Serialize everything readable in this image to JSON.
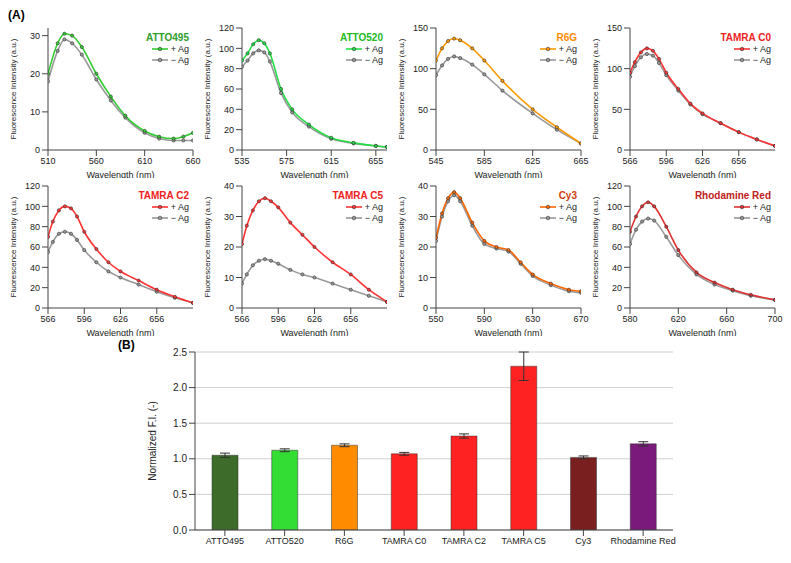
{
  "panel_labels": [
    "(A)",
    "(B)"
  ],
  "chart_data": [
    {
      "type": "line",
      "title": "ATTO495",
      "color": "#2e9e2e",
      "x_label": "Wavelength (nm)",
      "y_label": "Fluorescence Intensity (a.u.)",
      "x": [
        510,
        520,
        527,
        535,
        545,
        560,
        575,
        590,
        610,
        625,
        640,
        650,
        660
      ],
      "series": [
        {
          "name": "+ Ag",
          "color": "#33cc33",
          "marker": "circle",
          "values": [
            20,
            28,
            30.5,
            30,
            27,
            20,
            14,
            9,
            5,
            3.5,
            3,
            3.5,
            4.5
          ]
        },
        {
          "name": "− Ag",
          "color": "#999999",
          "marker": "circle",
          "values": [
            18,
            26,
            29,
            28,
            25,
            18.5,
            13,
            8.5,
            4.5,
            3,
            2.5,
            2.5,
            2.5
          ]
        }
      ],
      "xlim": [
        510,
        660
      ],
      "xticks": [
        510,
        560,
        610,
        660
      ],
      "ylim": [
        0,
        32
      ],
      "yticks": [
        0,
        10,
        20,
        30
      ],
      "legend": "upper right",
      "grid": false
    },
    {
      "type": "line",
      "title": "ATTO520",
      "color": "#22bb22",
      "x_label": "Wavelength (nm)",
      "y_label": "Fluorescence Intensity (a.u.)",
      "x": [
        535,
        540,
        545,
        550,
        555,
        560,
        570,
        580,
        595,
        615,
        635,
        655,
        665
      ],
      "series": [
        {
          "name": "+ Ag",
          "color": "#22dd44",
          "marker": "circle",
          "values": [
            88,
            95,
            104,
            108,
            105,
            95,
            60,
            40,
            25,
            12,
            7,
            4,
            3
          ]
        },
        {
          "name": "− Ag",
          "color": "#999999",
          "marker": "circle",
          "values": [
            82,
            88,
            95,
            98,
            96,
            87,
            56,
            37,
            23,
            11,
            6.5,
            4,
            3
          ]
        }
      ],
      "xlim": [
        535,
        665
      ],
      "xticks": [
        535,
        575,
        615,
        655
      ],
      "ylim": [
        0,
        120
      ],
      "yticks": [
        0,
        20,
        40,
        60,
        80,
        100,
        120
      ],
      "legend": "upper right",
      "grid": false
    },
    {
      "type": "line",
      "title": "R6G",
      "color": "#ff8c00",
      "x_label": "Wavelength (nm)",
      "y_label": "Fluorescence Intensity (a.u.)",
      "x": [
        545,
        550,
        555,
        560,
        565,
        575,
        585,
        600,
        625,
        645,
        665
      ],
      "series": [
        {
          "name": "+ Ag",
          "color": "#ff9900",
          "marker": "circle",
          "values": [
            110,
            125,
            134,
            137,
            135,
            125,
            110,
            85,
            50,
            28,
            8
          ]
        },
        {
          "name": "− Ag",
          "color": "#999999",
          "marker": "circle",
          "values": [
            92,
            104,
            112,
            115,
            113,
            105,
            93,
            73,
            45,
            25,
            8
          ]
        }
      ],
      "xlim": [
        545,
        665
      ],
      "xticks": [
        545,
        585,
        625,
        665
      ],
      "ylim": [
        0,
        150
      ],
      "yticks": [
        0,
        50,
        100,
        150
      ],
      "legend": "upper right",
      "grid": false
    },
    {
      "type": "line",
      "title": "TAMRA C0",
      "color": "#ee2222",
      "x_label": "Wavelength (nm)",
      "y_label": "Fluorescence Intensity (a.u.)",
      "x": [
        566,
        570,
        575,
        580,
        585,
        590,
        596,
        606,
        616,
        626,
        641,
        656,
        671,
        686
      ],
      "series": [
        {
          "name": "+ Ag",
          "color": "#ff3333",
          "marker": "circle",
          "values": [
            95,
            108,
            120,
            125,
            122,
            112,
            95,
            75,
            57,
            45,
            33,
            22,
            13,
            5
          ]
        },
        {
          "name": "− Ag",
          "color": "#999999",
          "marker": "circle",
          "values": [
            90,
            103,
            114,
            118,
            116,
            107,
            92,
            73,
            56,
            44,
            33,
            22,
            13,
            5
          ]
        }
      ],
      "xlim": [
        566,
        686
      ],
      "xticks": [
        566,
        596,
        626,
        656
      ],
      "ylim": [
        0,
        150
      ],
      "yticks": [
        0,
        50,
        100,
        150
      ],
      "legend": "upper right",
      "grid": false
    },
    {
      "type": "line",
      "title": "TAMRA C2",
      "color": "#ee2222",
      "x_label": "Wavelength (nm)",
      "y_label": "Fluorescence Intensity (a.u.)",
      "x": [
        566,
        570,
        575,
        580,
        585,
        590,
        596,
        606,
        616,
        626,
        641,
        656,
        671,
        686
      ],
      "series": [
        {
          "name": "+ Ag",
          "color": "#ff3333",
          "marker": "circle",
          "values": [
            70,
            85,
            96,
            100,
            98,
            90,
            75,
            58,
            45,
            36,
            27,
            18,
            11,
            5
          ]
        },
        {
          "name": "− Ag",
          "color": "#999999",
          "marker": "circle",
          "values": [
            55,
            65,
            73,
            75,
            73,
            67,
            57,
            45,
            36,
            30,
            23,
            16,
            10,
            5
          ]
        }
      ],
      "xlim": [
        566,
        686
      ],
      "xticks": [
        566,
        596,
        626,
        656
      ],
      "ylim": [
        0,
        120
      ],
      "yticks": [
        0,
        20,
        40,
        60,
        80,
        100,
        120
      ],
      "legend": "upper right",
      "grid": false
    },
    {
      "type": "line",
      "title": "TAMRA C5",
      "color": "#ee2222",
      "x_label": "Wavelength (nm)",
      "y_label": "Fluorescence Intensity (a.u.)",
      "x": [
        566,
        570,
        575,
        580,
        585,
        590,
        596,
        606,
        616,
        626,
        641,
        656,
        671,
        686
      ],
      "series": [
        {
          "name": "+ Ag",
          "color": "#ff3333",
          "marker": "circle",
          "values": [
            21,
            27,
            32,
            35,
            36,
            35,
            33,
            28,
            24,
            20,
            15,
            11,
            6,
            2
          ]
        },
        {
          "name": "− Ag",
          "color": "#999999",
          "marker": "circle",
          "values": [
            8,
            11,
            14,
            15.5,
            16,
            15.5,
            14.5,
            12.5,
            11,
            10,
            8,
            6,
            4,
            2
          ]
        }
      ],
      "xlim": [
        566,
        686
      ],
      "xticks": [
        566,
        596,
        626,
        656
      ],
      "ylim": [
        0,
        40
      ],
      "yticks": [
        0,
        10,
        20,
        30,
        40
      ],
      "legend": "upper right",
      "grid": false
    },
    {
      "type": "line",
      "title": "Cy3",
      "color": "#d04010",
      "x_label": "Wavelength (nm)",
      "y_label": "Fluorescence Intensity (a.u.)",
      "x": [
        550,
        555,
        560,
        565,
        570,
        580,
        590,
        600,
        610,
        620,
        630,
        645,
        660,
        670
      ],
      "series": [
        {
          "name": "+ Ag",
          "color": "#ff6600",
          "marker": "circle",
          "values": [
            23,
            31,
            36,
            38,
            36,
            28,
            22,
            20,
            19,
            15,
            11,
            8,
            6,
            5.5
          ]
        },
        {
          "name": "− Ag",
          "color": "#999999",
          "marker": "circle",
          "values": [
            22,
            30,
            35,
            37,
            35,
            27,
            21,
            19.5,
            18.5,
            14.5,
            10.5,
            7.5,
            5.5,
            5
          ]
        }
      ],
      "xlim": [
        550,
        670
      ],
      "xticks": [
        550,
        590,
        630,
        670
      ],
      "ylim": [
        0,
        40
      ],
      "yticks": [
        0,
        10,
        20,
        30,
        40
      ],
      "legend": "upper right",
      "grid": false
    },
    {
      "type": "line",
      "title": "Rhodamine Red",
      "color": "#c02020",
      "x_label": "Wavelength (nm)",
      "y_label": "Fluorescence Intensity (a.u.)",
      "x": [
        580,
        585,
        590,
        595,
        600,
        610,
        620,
        635,
        650,
        665,
        680,
        700
      ],
      "series": [
        {
          "name": "+ Ag",
          "color": "#e03030",
          "marker": "circle",
          "values": [
            75,
            90,
            100,
            104,
            100,
            80,
            57,
            35,
            25,
            18,
            13,
            8
          ]
        },
        {
          "name": "− Ag",
          "color": "#999999",
          "marker": "circle",
          "values": [
            63,
            77,
            85,
            88,
            86,
            70,
            52,
            33,
            23,
            17,
            12,
            8
          ]
        }
      ],
      "xlim": [
        580,
        700
      ],
      "xticks": [
        580,
        620,
        660,
        700
      ],
      "ylim": [
        0,
        120
      ],
      "yticks": [
        0,
        20,
        40,
        60,
        80,
        100,
        120
      ],
      "legend": "upper right",
      "grid": false
    },
    {
      "type": "bar",
      "y_label": "Normalized F.I. (-)",
      "categories": [
        "ATTO495",
        "ATTO520",
        "R6G",
        "TAMRA C0",
        "TAMRA C2",
        "TAMRA C5",
        "Cy3",
        "Rhodamine Red"
      ],
      "values": [
        1.05,
        1.12,
        1.19,
        1.07,
        1.32,
        2.3,
        1.02,
        1.21
      ],
      "errors": [
        0.03,
        0.02,
        0.02,
        0.02,
        0.03,
        0.2,
        0.02,
        0.03
      ],
      "colors": [
        "#3d6b2a",
        "#33dd33",
        "#ff8c00",
        "#ff2222",
        "#ff2222",
        "#ff2222",
        "#7a1f1f",
        "#7a1a7a"
      ],
      "ylim": [
        0,
        2.5
      ],
      "yticks": [
        {
          "value": 0,
          "label": "0.0"
        },
        0.5,
        {
          "value": 1,
          "label": "1.0"
        },
        1.5,
        {
          "value": 2,
          "label": "2.0"
        },
        2.5
      ],
      "grid": true
    }
  ]
}
